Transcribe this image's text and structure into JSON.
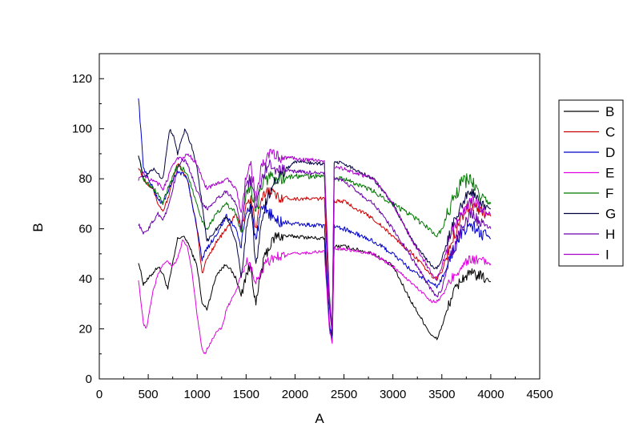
{
  "chart_data": {
    "type": "line",
    "xlabel": "A",
    "ylabel": "B",
    "xlim": [
      0,
      4500
    ],
    "ylim": [
      0,
      130
    ],
    "x_ticks": [
      0,
      500,
      1000,
      1500,
      2000,
      2500,
      3000,
      3500,
      4000,
      4500
    ],
    "y_ticks": [
      0,
      20,
      40,
      60,
      80,
      100,
      120
    ],
    "legend_position": "right",
    "series": [
      {
        "name": "B",
        "color": "#000000",
        "noise": 1.5,
        "x": [
          400,
          450,
          500,
          600,
          650,
          700,
          800,
          850,
          900,
          1000,
          1050,
          1100,
          1200,
          1300,
          1400,
          1450,
          1500,
          1550,
          1600,
          1650,
          1700,
          1800,
          2000,
          2300,
          2350,
          2380,
          2400,
          2500,
          2800,
          3000,
          3200,
          3400,
          3450,
          3500,
          3600,
          3700,
          3800,
          3900,
          4000
        ],
        "y": [
          47,
          38,
          40,
          45,
          42,
          36,
          56,
          57,
          55,
          45,
          30,
          28,
          42,
          46,
          40,
          33,
          42,
          45,
          29,
          42,
          50,
          57,
          57,
          56,
          22,
          16,
          53,
          53,
          50,
          45,
          30,
          17,
          16,
          21,
          33,
          40,
          42,
          41,
          39
        ]
      },
      {
        "name": "C",
        "color": "#cc0000",
        "noise": 1.5,
        "x": [
          400,
          450,
          550,
          600,
          650,
          700,
          800,
          850,
          900,
          1000,
          1050,
          1100,
          1200,
          1300,
          1400,
          1450,
          1500,
          1550,
          1600,
          1650,
          1700,
          1750,
          1800,
          2000,
          2300,
          2350,
          2380,
          2400,
          2500,
          2800,
          3000,
          3200,
          3400,
          3450,
          3500,
          3600,
          3700,
          3800,
          3900,
          4000
        ],
        "y": [
          85,
          80,
          76,
          70,
          67,
          72,
          86,
          83,
          80,
          60,
          42,
          48,
          55,
          60,
          66,
          60,
          70,
          72,
          60,
          70,
          75,
          76,
          73,
          72,
          72,
          30,
          20,
          71,
          71,
          64,
          57,
          50,
          41,
          40,
          43,
          55,
          65,
          70,
          67,
          65
        ]
      },
      {
        "name": "D",
        "color": "#0000cc",
        "noise": 1.8,
        "x": [
          400,
          450,
          500,
          600,
          650,
          700,
          800,
          850,
          900,
          1000,
          1050,
          1100,
          1200,
          1300,
          1400,
          1450,
          1500,
          1550,
          1600,
          1650,
          1700,
          1750,
          1800,
          2000,
          2300,
          2350,
          2380,
          2400,
          2500,
          2800,
          3000,
          3200,
          3400,
          3450,
          3500,
          3600,
          3700,
          3800,
          3900,
          4000
        ],
        "y": [
          113,
          85,
          80,
          72,
          70,
          75,
          83,
          82,
          80,
          60,
          48,
          52,
          58,
          65,
          60,
          52,
          66,
          70,
          55,
          66,
          68,
          66,
          63,
          62,
          61,
          22,
          16,
          61,
          60,
          55,
          50,
          43,
          38,
          37,
          40,
          50,
          58,
          62,
          58,
          56
        ]
      },
      {
        "name": "E",
        "color": "#e000e0",
        "noise": 1.3,
        "x": [
          400,
          450,
          480,
          550,
          600,
          650,
          700,
          750,
          800,
          850,
          900,
          950,
          1000,
          1050,
          1080,
          1100,
          1200,
          1250,
          1300,
          1400,
          1450,
          1500,
          1550,
          1600,
          1650,
          1700,
          1800,
          2000,
          2300,
          2350,
          2380,
          2400,
          2500,
          2800,
          3000,
          3200,
          3400,
          3450,
          3500,
          3600,
          3700,
          3800,
          3900,
          4000
        ],
        "y": [
          40,
          22,
          20,
          35,
          42,
          46,
          47,
          45,
          48,
          55,
          53,
          42,
          25,
          12,
          10,
          12,
          19,
          20,
          28,
          35,
          42,
          47,
          44,
          38,
          42,
          46,
          49,
          50,
          51,
          20,
          14,
          52,
          52,
          50,
          45,
          38,
          31,
          31,
          33,
          40,
          45,
          48,
          47,
          46
        ]
      },
      {
        "name": "F",
        "color": "#007700",
        "noise": 2.0,
        "x": [
          400,
          450,
          500,
          600,
          650,
          700,
          800,
          850,
          900,
          1000,
          1050,
          1100,
          1200,
          1300,
          1400,
          1450,
          1500,
          1550,
          1600,
          1650,
          1700,
          1750,
          1800,
          2000,
          2300,
          2350,
          2380,
          2400,
          2500,
          2800,
          3000,
          3200,
          3400,
          3450,
          3500,
          3600,
          3700,
          3800,
          3900,
          4000
        ],
        "y": [
          90,
          80,
          78,
          74,
          70,
          76,
          85,
          84,
          82,
          70,
          63,
          60,
          66,
          70,
          66,
          58,
          75,
          78,
          66,
          76,
          80,
          81,
          80,
          81,
          81,
          35,
          20,
          80,
          80,
          75,
          70,
          65,
          59,
          57,
          60,
          70,
          78,
          80,
          72,
          70
        ]
      },
      {
        "name": "G",
        "color": "#000040",
        "noise": 1.5,
        "x": [
          400,
          450,
          500,
          550,
          600,
          650,
          700,
          720,
          750,
          800,
          850,
          880,
          900,
          950,
          1000,
          1050,
          1100,
          1200,
          1300,
          1400,
          1450,
          1500,
          1550,
          1600,
          1650,
          1700,
          1800,
          2000,
          2300,
          2350,
          2380,
          2400,
          2500,
          2800,
          3000,
          3200,
          3400,
          3450,
          3500,
          3600,
          3700,
          3800,
          3900,
          4000
        ],
        "y": [
          90,
          80,
          82,
          84,
          82,
          80,
          95,
          100,
          98,
          90,
          97,
          100,
          98,
          92,
          84,
          70,
          55,
          60,
          65,
          55,
          40,
          60,
          70,
          45,
          60,
          70,
          80,
          87,
          86,
          30,
          18,
          87,
          86,
          80,
          70,
          55,
          45,
          44,
          48,
          60,
          70,
          75,
          70,
          68
        ]
      },
      {
        "name": "H",
        "color": "#6a00aa",
        "noise": 1.6,
        "x": [
          400,
          450,
          500,
          600,
          650,
          700,
          800,
          850,
          900,
          1000,
          1050,
          1100,
          1200,
          1300,
          1400,
          1450,
          1500,
          1550,
          1600,
          1650,
          1700,
          1750,
          1800,
          2000,
          2300,
          2350,
          2380,
          2400,
          2500,
          2800,
          3000,
          3200,
          3400,
          3450,
          3500,
          3600,
          3700,
          3800,
          3900,
          4000
        ],
        "y": [
          62,
          58,
          60,
          66,
          64,
          68,
          84,
          88,
          86,
          75,
          70,
          68,
          72,
          75,
          70,
          60,
          78,
          80,
          68,
          78,
          84,
          86,
          84,
          83,
          82,
          30,
          18,
          80,
          79,
          70,
          60,
          48,
          35,
          33,
          36,
          50,
          60,
          66,
          62,
          60
        ]
      },
      {
        "name": "I",
        "color": "#aa00cc",
        "noise": 1.6,
        "x": [
          400,
          450,
          500,
          600,
          650,
          700,
          750,
          800,
          850,
          900,
          950,
          1000,
          1050,
          1100,
          1200,
          1300,
          1400,
          1450,
          1500,
          1550,
          1600,
          1650,
          1700,
          1750,
          1800,
          2000,
          2300,
          2350,
          2380,
          2400,
          2500,
          2800,
          3000,
          3200,
          3400,
          3450,
          3500,
          3600,
          3700,
          3800,
          3900,
          4000
        ],
        "y": [
          80,
          82,
          80,
          78,
          76,
          80,
          86,
          88,
          88,
          90,
          88,
          86,
          80,
          76,
          78,
          80,
          76,
          66,
          82,
          85,
          72,
          84,
          88,
          90,
          89,
          88,
          87,
          33,
          20,
          85,
          84,
          80,
          70,
          55,
          42,
          40,
          45,
          58,
          66,
          72,
          68,
          66
        ]
      }
    ]
  }
}
